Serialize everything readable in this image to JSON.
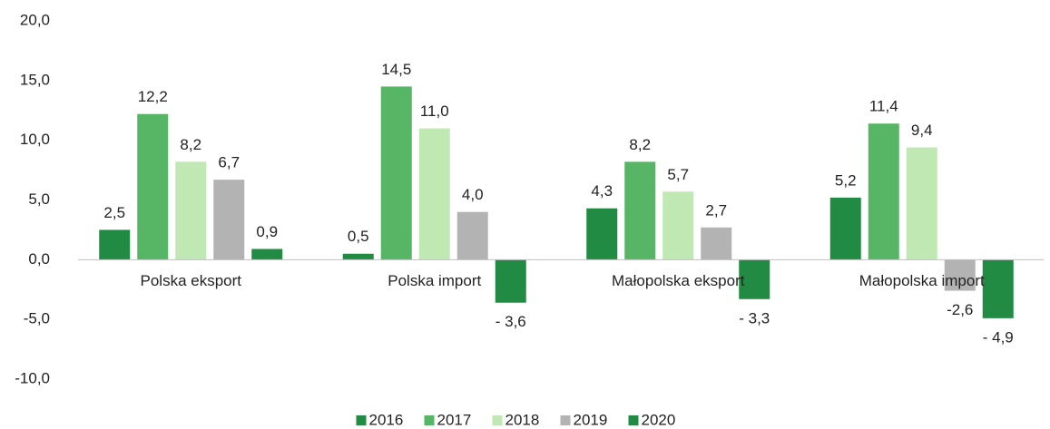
{
  "chart_data": {
    "type": "bar",
    "categories": [
      "Polska eksport",
      "Polska import",
      "Małopolska eksport",
      "Małopolska import"
    ],
    "series": [
      {
        "name": "2016",
        "color": "#218b44",
        "values": [
          2.5,
          0.5,
          4.3,
          5.2
        ],
        "value_labels": [
          "2,5",
          "0,5",
          "4,3",
          "5,2"
        ]
      },
      {
        "name": "2017",
        "color": "#57b566",
        "values": [
          12.2,
          14.5,
          8.2,
          11.4
        ],
        "value_labels": [
          "12,2",
          "14,5",
          "8,2",
          "11,4"
        ]
      },
      {
        "name": "2018",
        "color": "#bfe8b3",
        "values": [
          8.2,
          11.0,
          5.7,
          9.4
        ],
        "value_labels": [
          "8,2",
          "11,0",
          "5,7",
          "9,4"
        ]
      },
      {
        "name": "2019",
        "color": "#b3b3b3",
        "values": [
          6.7,
          4.0,
          2.7,
          -2.6
        ],
        "value_labels": [
          "6,7",
          "4,0",
          "2,7",
          "-2,6"
        ]
      },
      {
        "name": "2020",
        "color": "#218b44",
        "values": [
          0.9,
          -3.6,
          -3.3,
          -4.9
        ],
        "value_labels": [
          "0,9",
          "- 3,6",
          "- 3,3",
          "- 4,9"
        ]
      }
    ],
    "ylim": [
      -10,
      20
    ],
    "yticks": [
      {
        "value": -10,
        "label": "-10,0"
      },
      {
        "value": -5,
        "label": "-5,0"
      },
      {
        "value": 0,
        "label": "0,0"
      },
      {
        "value": 5,
        "label": "5,0"
      },
      {
        "value": 10,
        "label": "10,0"
      },
      {
        "value": 15,
        "label": "15,0"
      },
      {
        "value": 20,
        "label": "20,0"
      }
    ],
    "grid": false,
    "legend": "bottom"
  }
}
